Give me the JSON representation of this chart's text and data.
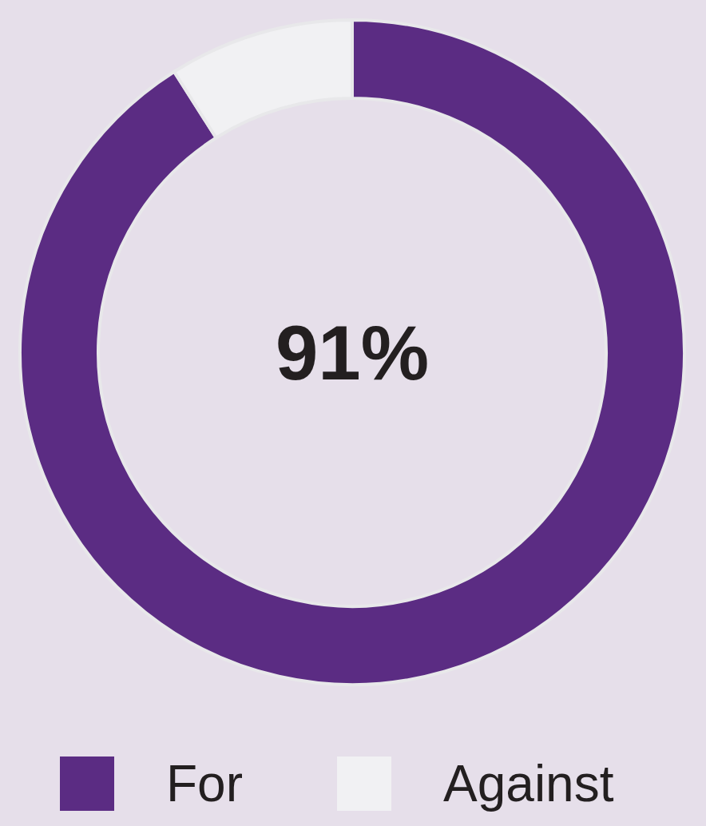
{
  "chart_data": {
    "type": "donut",
    "categories": [
      "For",
      "Against"
    ],
    "values": [
      91,
      9
    ],
    "colors": [
      "#5b2c83",
      "#f1f1f3"
    ],
    "value_labels": [
      "91%",
      null
    ],
    "legend": "bottom"
  }
}
